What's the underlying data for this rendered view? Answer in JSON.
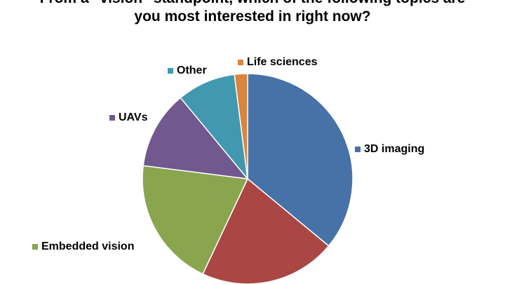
{
  "chart_data": {
    "type": "pie",
    "title": "From a \"vision\" standpoint, which of the following topics are you most interested in right now?",
    "categories": [
      "3D imaging",
      null,
      "Embedded vision",
      "UAVs",
      "Other",
      "Life sciences"
    ],
    "values": [
      36,
      21,
      20,
      12,
      9,
      2
    ],
    "colors": [
      "#4672a8",
      "#aa4643",
      "#89a54e",
      "#71588f",
      "#4198af",
      "#db843d"
    ]
  }
}
